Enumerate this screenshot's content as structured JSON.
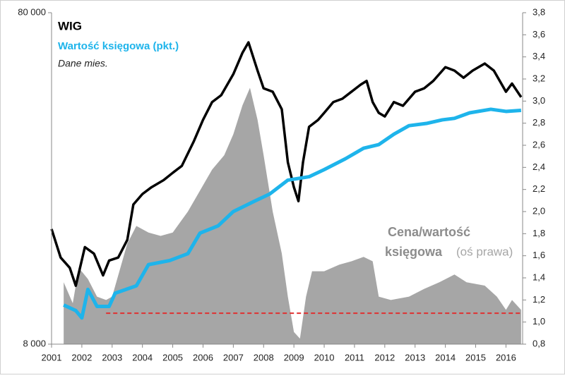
{
  "chart_data": {
    "type": "line",
    "yscale": "log",
    "xlim": [
      2001,
      2016.55
    ],
    "xticks": [
      2001,
      2002,
      2003,
      2004,
      2005,
      2006,
      2007,
      2008,
      2009,
      2010,
      2011,
      2012,
      2013,
      2014,
      2015,
      2016
    ],
    "ylim": [
      8000,
      80000
    ],
    "yticks": [
      {
        "value": 8000,
        "label": "8 000"
      },
      {
        "value": 80000,
        "label": "80 000"
      }
    ],
    "y2lim": [
      0.8,
      3.8
    ],
    "y2ticks": [
      {
        "value": 0.8,
        "label": "0,8"
      },
      {
        "value": 1.0,
        "label": "1,0"
      },
      {
        "value": 1.2,
        "label": "1,2"
      },
      {
        "value": 1.4,
        "label": "1,4"
      },
      {
        "value": 1.6,
        "label": "1,6"
      },
      {
        "value": 1.8,
        "label": "1,8"
      },
      {
        "value": 2.0,
        "label": "2,0"
      },
      {
        "value": 2.2,
        "label": "2,2"
      },
      {
        "value": 2.4,
        "label": "2,4"
      },
      {
        "value": 2.6,
        "label": "2,6"
      },
      {
        "value": 2.8,
        "label": "2,8"
      },
      {
        "value": 3.0,
        "label": "3,0"
      },
      {
        "value": 3.2,
        "label": "3,2"
      },
      {
        "value": 3.4,
        "label": "3,4"
      },
      {
        "value": 3.6,
        "label": "3,6"
      },
      {
        "value": 3.8,
        "label": "3,8"
      }
    ],
    "series": [
      {
        "type": "area",
        "axis": "y2",
        "color": "#a6a6a6",
        "x": [
          2001.4,
          2001.7,
          2001.9,
          2002.2,
          2002.5,
          2002.8,
          2003.0,
          2003.5,
          2003.8,
          2004.2,
          2004.6,
          2005.0,
          2005.5,
          2005.9,
          2006.3,
          2006.7,
          2007.0,
          2007.3,
          2007.55,
          2007.8,
          2008.0,
          2008.3,
          2008.6,
          2008.8,
          2009.0,
          2009.2,
          2009.4,
          2009.6,
          2010.0,
          2010.5,
          2010.9,
          2011.3,
          2011.6,
          2011.8,
          2012.2,
          2012.8,
          2013.3,
          2013.8,
          2014.3,
          2014.7,
          2015.3,
          2015.7,
          2016.0,
          2016.2,
          2016.5
        ],
        "values": [
          1.36,
          1.17,
          1.49,
          1.39,
          1.23,
          1.2,
          1.23,
          1.71,
          1.87,
          1.81,
          1.78,
          1.81,
          2.0,
          2.19,
          2.38,
          2.51,
          2.7,
          2.96,
          3.12,
          2.83,
          2.51,
          2.0,
          1.62,
          1.23,
          0.91,
          0.85,
          1.23,
          1.46,
          1.46,
          1.52,
          1.55,
          1.59,
          1.55,
          1.23,
          1.2,
          1.23,
          1.3,
          1.36,
          1.43,
          1.36,
          1.33,
          1.23,
          1.11,
          1.2,
          1.11
        ]
      },
      {
        "name": "WIG",
        "color": "#000000",
        "x": [
          2001.0,
          2001.3,
          2001.6,
          2001.8,
          2002.1,
          2002.4,
          2002.7,
          2002.9,
          2003.2,
          2003.5,
          2003.7,
          2004.0,
          2004.3,
          2004.7,
          2005.0,
          2005.3,
          2005.7,
          2006.0,
          2006.3,
          2006.6,
          2007.0,
          2007.3,
          2007.5,
          2007.8,
          2008.0,
          2008.3,
          2008.6,
          2008.8,
          2009.0,
          2009.15,
          2009.3,
          2009.5,
          2009.8,
          2010.0,
          2010.3,
          2010.6,
          2010.9,
          2011.2,
          2011.4,
          2011.6,
          2011.8,
          2012.0,
          2012.3,
          2012.6,
          2013.0,
          2013.3,
          2013.6,
          2014.0,
          2014.3,
          2014.6,
          2014.9,
          2015.3,
          2015.6,
          2016.0,
          2016.2,
          2016.5
        ],
        "values": [
          17800,
          14600,
          13600,
          12000,
          15700,
          15000,
          12900,
          14300,
          14600,
          16500,
          21100,
          22700,
          23800,
          25000,
          26300,
          27600,
          32800,
          38000,
          43000,
          45100,
          52200,
          60500,
          65100,
          53500,
          47300,
          46200,
          40900,
          28300,
          23800,
          21600,
          28300,
          36200,
          38000,
          39900,
          43000,
          44000,
          46200,
          48500,
          49800,
          43000,
          39900,
          38900,
          43000,
          41900,
          46200,
          47300,
          49800,
          54800,
          53500,
          50900,
          53500,
          56200,
          53500,
          46200,
          48900,
          44500
        ]
      },
      {
        "name": "Wartość księgowa (pkt.)",
        "color": "#1eb4eb",
        "x": [
          2001.4,
          2001.8,
          2002.0,
          2002.2,
          2002.5,
          2002.9,
          2003.1,
          2003.8,
          2004.2,
          2004.9,
          2005.5,
          2005.9,
          2006.5,
          2007.0,
          2007.7,
          2008.2,
          2008.8,
          2009.5,
          2010.0,
          2010.7,
          2011.3,
          2011.8,
          2012.3,
          2012.8,
          2013.4,
          2013.9,
          2014.3,
          2014.8,
          2015.5,
          2016.0,
          2016.5
        ],
        "values": [
          10500,
          10100,
          9600,
          11700,
          10400,
          10400,
          11400,
          12000,
          13900,
          14300,
          15000,
          17300,
          18200,
          20100,
          21600,
          22700,
          25000,
          25600,
          26900,
          29000,
          31200,
          32000,
          34400,
          36500,
          37100,
          38000,
          38400,
          39900,
          40900,
          40300,
          40600
        ]
      }
    ],
    "reference_line": {
      "value": 1.08,
      "axis": "y2",
      "x": [
        2002.8,
        2016.5
      ],
      "color": "#e03030"
    },
    "annotations": [
      "Dane mies.",
      "Cena/wartość",
      "księgowa",
      "(oś prawa)"
    ]
  }
}
